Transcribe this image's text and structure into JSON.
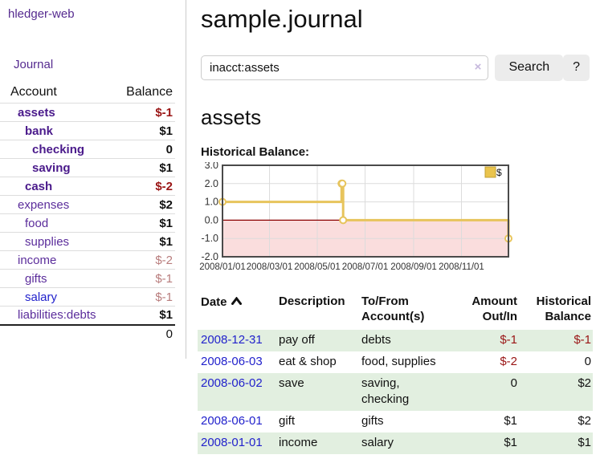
{
  "sidebar": {
    "brand": "hledger-web",
    "journal_link": "Journal",
    "accounts_table": {
      "headers": [
        "Account",
        "Balance"
      ],
      "rows": [
        {
          "name": "assets",
          "depth": 1,
          "balance": "$-1",
          "bold": true
        },
        {
          "name": "bank",
          "depth": 2,
          "balance": "$1",
          "bold": true
        },
        {
          "name": "checking",
          "depth": 3,
          "balance": "0",
          "bold": true
        },
        {
          "name": "saving",
          "depth": 3,
          "balance": "$1",
          "bold": true
        },
        {
          "name": "cash",
          "depth": 2,
          "balance": "$-2",
          "bold": true
        },
        {
          "name": "expenses",
          "depth": 1,
          "balance": "$2",
          "bold": false
        },
        {
          "name": "food",
          "depth": 2,
          "balance": "$1",
          "bold": false
        },
        {
          "name": "supplies",
          "depth": 2,
          "balance": "$1",
          "bold": false
        },
        {
          "name": "income",
          "depth": 1,
          "balance": "$-2",
          "bold": false
        },
        {
          "name": "gifts",
          "depth": 2,
          "balance": "$-1",
          "bold": false
        },
        {
          "name": "salary",
          "depth": 2,
          "balance": "$-1",
          "bold": false,
          "link_color": "blue"
        },
        {
          "name": "liabilities:debts",
          "depth": 1,
          "balance": "$1",
          "bold": false
        }
      ],
      "total": "0"
    }
  },
  "header": {
    "title": "sample.journal"
  },
  "search": {
    "value": "inacct:assets",
    "clear_icon": "×",
    "button_label": "Search",
    "help_label": "?"
  },
  "account_page": {
    "heading": "assets",
    "chart_label": "Historical Balance:"
  },
  "chart_data": {
    "type": "line",
    "step": true,
    "title": "Historical Balance:",
    "series": [
      {
        "name": "$",
        "points": [
          [
            "2008-01-01",
            1
          ],
          [
            "2008-06-01",
            2
          ],
          [
            "2008-06-02",
            2
          ],
          [
            "2008-06-03",
            0
          ],
          [
            "2008-12-31",
            -1
          ]
        ]
      }
    ],
    "x_range": [
      "2008-01-01",
      "2008-12-31"
    ],
    "ylim": [
      -2,
      3
    ],
    "y_ticks": [
      {
        "v": 3,
        "label": "3.0"
      },
      {
        "v": 2,
        "label": "2.0"
      },
      {
        "v": 1,
        "label": "1.0"
      },
      {
        "v": 0,
        "label": "0.0"
      },
      {
        "v": -1,
        "label": "-1.0"
      },
      {
        "v": -2,
        "label": "-2.0"
      }
    ],
    "x_ticks": [
      {
        "date": "2008-01-01",
        "label": "2008/01/01"
      },
      {
        "date": "2008-03-01",
        "label": "2008/03/01"
      },
      {
        "date": "2008-05-01",
        "label": "2008/05/01"
      },
      {
        "date": "2008-07-01",
        "label": "2008/07/01"
      },
      {
        "date": "2008-09-01",
        "label": "2008/09/01"
      },
      {
        "date": "2008-11-01",
        "label": "2008/11/01"
      }
    ],
    "legend": {
      "label": "$",
      "position": "top-right"
    },
    "grid": true
  },
  "register": {
    "headers": [
      {
        "line1": "Date",
        "line2": "",
        "sort": "asc"
      },
      {
        "line1": "Description",
        "line2": ""
      },
      {
        "line1": "To/From",
        "line2": "Account(s)"
      },
      {
        "line1": "Amount",
        "line2": "Out/In"
      },
      {
        "line1": "Historical",
        "line2": "Balance"
      }
    ],
    "rows": [
      {
        "date": "2008-12-31",
        "description": "pay off",
        "accounts": [
          "debts"
        ],
        "amount": "$-1",
        "balance": "$-1",
        "stripe": true
      },
      {
        "date": "2008-06-03",
        "description": "eat & shop",
        "accounts": [
          "food, supplies"
        ],
        "amount": "$-2",
        "balance": "0",
        "stripe": false
      },
      {
        "date": "2008-06-02",
        "description": "save",
        "accounts": [
          "saving,",
          "checking"
        ],
        "amount": "0",
        "balance": "$2",
        "stripe": true
      },
      {
        "date": "2008-06-01",
        "description": "gift",
        "accounts": [
          "gifts"
        ],
        "amount": "$1",
        "balance": "$2",
        "stripe": false
      },
      {
        "date": "2008-01-01",
        "description": "income",
        "accounts": [
          "salary"
        ],
        "amount": "$1",
        "balance": "$1",
        "stripe": true
      }
    ]
  },
  "colors": {
    "link_purple": "#552a8f",
    "link_blue": "#2222cc",
    "negative_strong": "#9a1515",
    "negative_soft": "#b87c7c",
    "stripe_green": "#e2efe0",
    "chart_line_gold": "#e7c45c",
    "chart_legend_fill": "#eac44d",
    "chart_negative_fill": "#fadddd",
    "chart_zero_line": "#8b0000",
    "chart_border": "#4a4a4a",
    "button_gray": "#ececec"
  }
}
